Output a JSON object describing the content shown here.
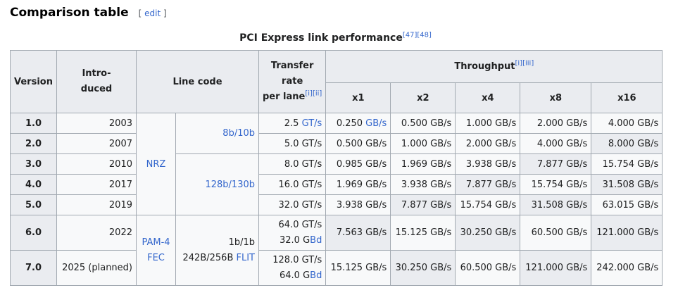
{
  "section": {
    "title": "Comparison table",
    "edit_open": "[ ",
    "edit_label": "edit",
    "edit_close": " ]"
  },
  "caption": {
    "text": "PCI Express link performance",
    "refs": [
      "[47]",
      "[48]"
    ]
  },
  "headers": {
    "version": "Version",
    "introduced": [
      "Intro-",
      "duced"
    ],
    "line_code": "Line code",
    "transfer_rate": [
      "Transfer",
      "rate",
      "per lane"
    ],
    "transfer_rate_refs": [
      "[i]",
      "[ii]"
    ],
    "throughput": "Throughput",
    "throughput_refs": [
      "[i]",
      "[iii]"
    ],
    "lanes": [
      "x1",
      "x2",
      "x4",
      "x8",
      "x16"
    ]
  },
  "groups": {
    "nrz": "NRZ",
    "pam4": "PAM-4",
    "fec": "FEC",
    "code_8b10b": "8b/10b",
    "code_128b130b": "128b/130b",
    "code_1b1b": "1b/1b",
    "code_242b": "242B/256B",
    "flit": "FLIT"
  },
  "rows": [
    {
      "version": "1.0",
      "introduced": "2003",
      "rate": "2.5",
      "rate_unit": "GT/s",
      "rate_unit_link": true,
      "throughput": [
        "0.250",
        "0.500 GB/s",
        "1.000 GB/s",
        "2.000 GB/s",
        "4.000 GB/s"
      ],
      "x1_unit": "GB/s"
    },
    {
      "version": "2.0",
      "introduced": "2007",
      "rate": "5.0 GT/s",
      "throughput": [
        "0.500 GB/s",
        "1.000 GB/s",
        "2.000 GB/s",
        "4.000 GB/s",
        "8.000 GB/s"
      ]
    },
    {
      "version": "3.0",
      "introduced": "2010",
      "rate": "8.0 GT/s",
      "throughput": [
        "0.985 GB/s",
        "1.969 GB/s",
        "3.938 GB/s",
        "7.877 GB/s",
        "15.754 GB/s"
      ]
    },
    {
      "version": "4.0",
      "introduced": "2017",
      "rate": "16.0 GT/s",
      "throughput": [
        "1.969 GB/s",
        "3.938 GB/s",
        "7.877 GB/s",
        "15.754 GB/s",
        "31.508 GB/s"
      ]
    },
    {
      "version": "5.0",
      "introduced": "2019",
      "rate": "32.0 GT/s",
      "throughput": [
        "3.938 GB/s",
        "7.877 GB/s",
        "15.754 GB/s",
        "31.508 GB/s",
        "63.015 GB/s"
      ]
    },
    {
      "version": "6.0",
      "introduced": "2022",
      "rate": "64.0 GT/s",
      "rate2": "32.0 G",
      "rate2_unit": "Bd",
      "throughput": [
        "7.563 GB/s",
        "15.125 GB/s",
        "30.250 GB/s",
        "60.500 GB/s",
        "121.000 GB/s"
      ]
    },
    {
      "version": "7.0",
      "introduced": "2025 (planned)",
      "rate": "128.0 GT/s",
      "rate2": "64.0 G",
      "rate2_unit": "Bd",
      "throughput": [
        "15.125 GB/s",
        "30.250 GB/s",
        "60.500 GB/s",
        "121.000 GB/s",
        "242.000 GB/s"
      ]
    }
  ]
}
